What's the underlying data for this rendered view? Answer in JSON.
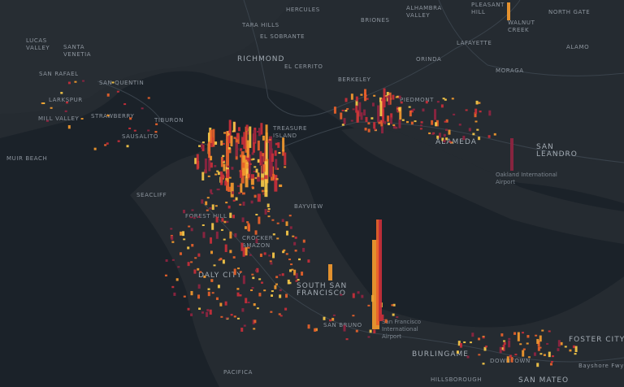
{
  "labels": [
    "HERCULES",
    "ALHAMBRA\nVALLEY",
    "PLEASANT\nHILL",
    "NORTH GATE",
    "WALNUT\nCREEK",
    "BRIONES",
    "TARA HILLS",
    "EL SOBRANTE",
    "LUCAS\nVALLEY",
    "SANTA\nVENETIA",
    "SAN RAFAEL",
    "SAN QUENTIN",
    "RICHMOND",
    "EL CERRITO",
    "ORINDA",
    "LAFAYETTE",
    "ALAMO",
    "MORAGA",
    "LARKSPUR",
    "MILL VALLEY",
    "STRAWBERRY",
    "TIBURON",
    "SAUSALITO",
    "PIEDMONT",
    "ALAMEDA",
    "SAN\nLEANDRO",
    "MUIR BEACH",
    "Oakland International\nAirport",
    "TREASURE\nISLAND",
    "SEACLIFF",
    "FOREST HILL",
    "BAYVIEW",
    "CROCKER\nAMAZON",
    "DALY CITY",
    "SOUTH SAN\nFRANCISCO",
    "SAN BRUNO",
    "San Francisco\nInternational\nAirport",
    "BURLINGAME",
    "PACIFICA",
    "HILLSBOROUGH",
    "DOWNTOWN",
    "SAN MATEO",
    "FOSTER CITY",
    "Bayshore Fwy",
    "BERKELEY"
  ]
}
